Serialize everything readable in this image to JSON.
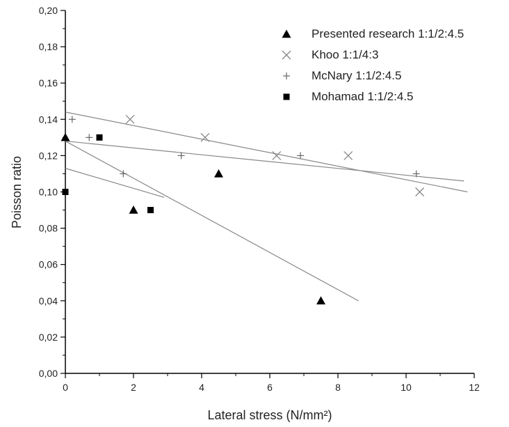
{
  "chart_data": {
    "type": "scatter",
    "xlabel": "Lateral stress (N/mm²)",
    "ylabel": "Poisson ratio",
    "xlim": [
      0,
      12
    ],
    "ylim": [
      0,
      0.2
    ],
    "x_ticks": [
      0,
      2,
      4,
      6,
      8,
      10,
      12
    ],
    "y_ticks": [
      0,
      0.02,
      0.04,
      0.06,
      0.08,
      0.1,
      0.12,
      0.14,
      0.16,
      0.18,
      0.2
    ],
    "x_tick_labels": [
      "0",
      "2",
      "4",
      "6",
      "8",
      "10",
      "12"
    ],
    "y_tick_labels": [
      "0,00",
      "0,02",
      "0,04",
      "0,06",
      "0,08",
      "0,10",
      "0,12",
      "0,14",
      "0,16",
      "0,18",
      "0,20"
    ],
    "grid": false,
    "legend_position": "top-right",
    "series": [
      {
        "name": "Presented research 1:1/2:4.5",
        "marker": "triangle",
        "color": "#000000",
        "points": [
          [
            0,
            0.13
          ],
          [
            2,
            0.09
          ],
          [
            4.5,
            0.11
          ],
          [
            7.5,
            0.04
          ]
        ],
        "fit": [
          [
            0,
            0.128
          ],
          [
            8.6,
            0.04
          ]
        ]
      },
      {
        "name": "Khoo 1:1/4:3",
        "marker": "x",
        "color": "#888888",
        "points": [
          [
            1.9,
            0.14
          ],
          [
            4.1,
            0.13
          ],
          [
            6.2,
            0.12
          ],
          [
            8.3,
            0.12
          ],
          [
            10.4,
            0.1
          ]
        ],
        "fit": [
          [
            0,
            0.144
          ],
          [
            11.8,
            0.1
          ]
        ]
      },
      {
        "name": "McNary 1:1/2:4.5",
        "marker": "plus",
        "color": "#666666",
        "points": [
          [
            0.2,
            0.14
          ],
          [
            0.7,
            0.13
          ],
          [
            1.7,
            0.11
          ],
          [
            3.4,
            0.12
          ],
          [
            6.9,
            0.12
          ],
          [
            10.3,
            0.11
          ]
        ],
        "fit": [
          [
            0,
            0.128
          ],
          [
            11.7,
            0.106
          ]
        ]
      },
      {
        "name": "Mohamad 1:1/2:4.5",
        "marker": "square",
        "color": "#000000",
        "points": [
          [
            0,
            0.1
          ],
          [
            1,
            0.13
          ],
          [
            2.5,
            0.09
          ]
        ],
        "fit": [
          [
            0,
            0.113
          ],
          [
            2.9,
            0.097
          ]
        ]
      }
    ]
  }
}
